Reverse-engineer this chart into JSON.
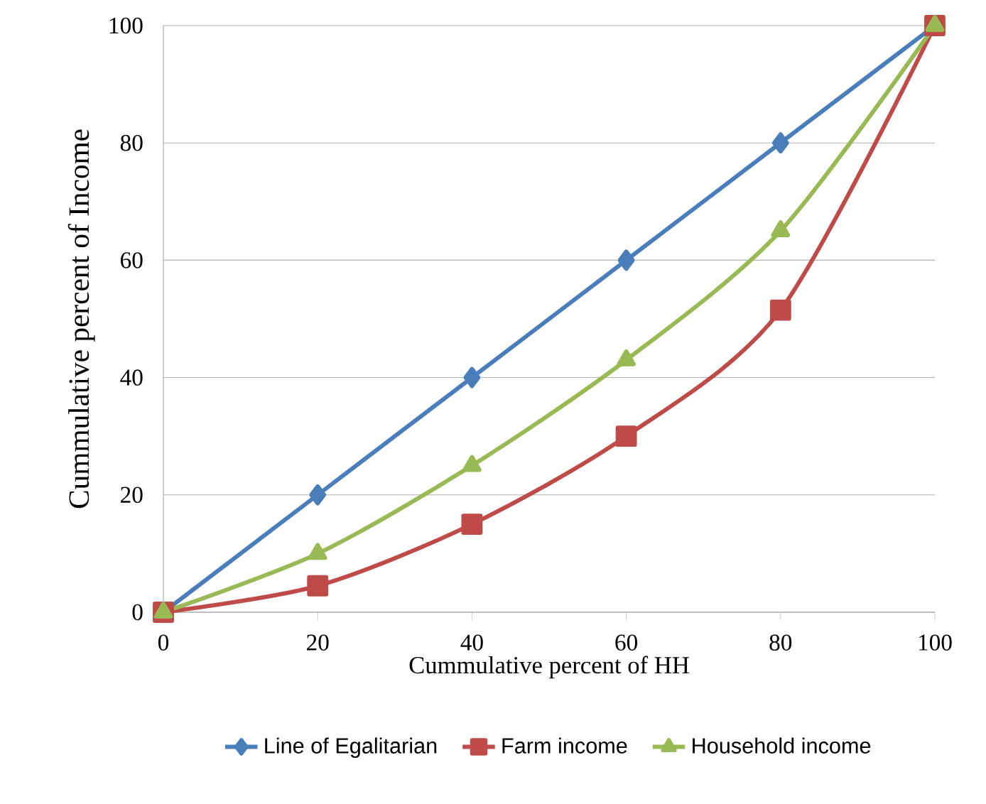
{
  "chart_data": {
    "type": "line",
    "xlabel": "Cummulative percent of HH",
    "ylabel": "Cummulative percent of Income",
    "x": [
      0,
      20,
      40,
      60,
      80,
      100
    ],
    "series": [
      {
        "name": "Line of Egalitarian",
        "color": "#4a7ebb",
        "marker": "diamond",
        "values": [
          0,
          20,
          40,
          60,
          80,
          100
        ]
      },
      {
        "name": "Farm income",
        "color": "#be4b48",
        "marker": "square",
        "values": [
          0,
          4.5,
          15,
          30,
          51.5,
          100
        ]
      },
      {
        "name": "Household income",
        "color": "#98b954",
        "marker": "triangle",
        "values": [
          0,
          10,
          25,
          43,
          65,
          100
        ]
      }
    ],
    "xlim": [
      0,
      100
    ],
    "ylim": [
      0,
      100
    ],
    "xticks": [
      0,
      20,
      40,
      60,
      80,
      100
    ],
    "yticks": [
      0,
      20,
      40,
      60,
      80,
      100
    ],
    "grid": "y",
    "legend": "bottom",
    "line_style": "solid"
  }
}
